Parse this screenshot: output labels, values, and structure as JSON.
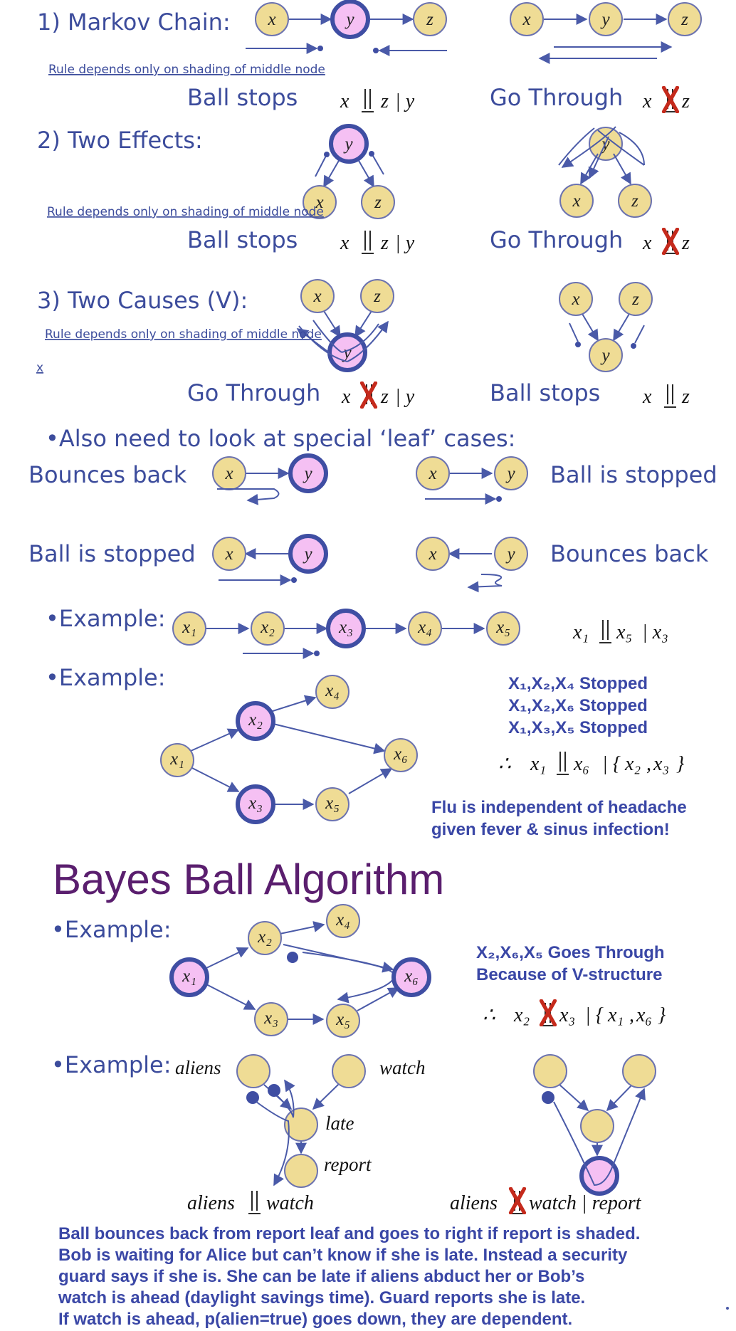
{
  "sections": {
    "markov_heading": "1) Markov Chain:",
    "two_effects_heading": "2) Two Effects:",
    "two_causes_heading": "3) Two Causes (V):",
    "rule_note": "Rule depends only on shading of middle node",
    "stray_mark": "x"
  },
  "outcomes": {
    "ball_stops": "Ball stops",
    "go_through": "Go Through",
    "bounces_back": "Bounces back",
    "ball_is_stopped": "Ball is stopped"
  },
  "leaf_heading": "•Also need to look at special ‘leaf’ cases:",
  "example_label": "•Example:",
  "formulas": {
    "cond_given_y": "| y",
    "example1_given": "| x₃",
    "example2_result": "∴  x₁ ∥ x₆ | {x₂, x₃}",
    "example3_result": "∴  x₂ ∥ x₃ | {x₁, x₆}",
    "aliens_watch": "aliens ∥ watch",
    "aliens_watch_report": "aliens ∥ watch | report"
  },
  "node_labels": {
    "x": "x",
    "y": "y",
    "z": "z",
    "x1": "x₁",
    "x2": "x₂",
    "x3": "x₃",
    "x4": "x₄",
    "x5": "x₅",
    "x6": "x₆",
    "aliens": "aliens",
    "watch": "watch",
    "late": "late",
    "report": "report"
  },
  "stopped_lines": [
    "X₁,X₂,X₄ Stopped",
    "X₁,X₂,X₆ Stopped",
    "X₁,X₃,X₅ Stopped"
  ],
  "flu_note": [
    "Flu is independent of headache",
    "given fever & sinus infection!"
  ],
  "title": "Bayes Ball Algorithm",
  "goes_through_note": [
    "X₂,X₆,X₅ Goes Through",
    "Because of V-structure"
  ],
  "bottom_paragraph": [
    "Ball bounces back from report leaf and goes to right if report is shaded.",
    "Bob is waiting for Alice but can’t know if she is late. Instead a security",
    "guard says if she is. She can be late if aliens abduct her or Bob’s",
    "watch is ahead (daylight savings time). Guard reports she is late.",
    "If watch is ahead, p(alien=true) goes down, they are dependent."
  ],
  "colors": {
    "text_blue": "#3c4c9c",
    "node_fill": "#efdc95",
    "node_stroke": "#6c73b0",
    "shaded_fill": "#f5c0f3",
    "shaded_stroke": "#3f4ea3",
    "title_purple": "#5a1e6e",
    "cross_red": "#c52a1c"
  }
}
